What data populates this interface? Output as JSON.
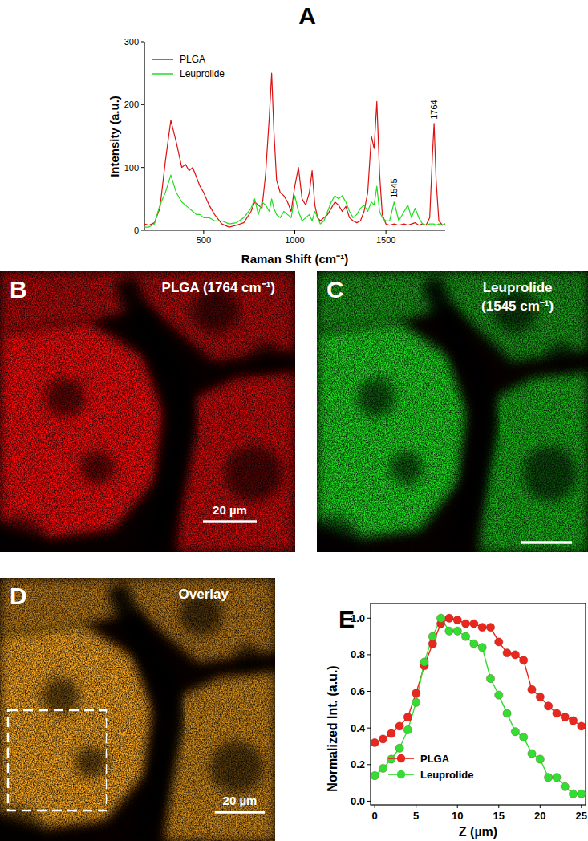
{
  "chart_data": [
    {
      "type": "line",
      "title": "A",
      "x_label": "Raman Shift (cm⁻¹)",
      "y_label": "Intensity (a.u.)",
      "x": [
        175,
        200,
        230,
        260,
        290,
        320,
        350,
        380,
        400,
        420,
        440,
        460,
        480,
        500,
        530,
        560,
        600,
        640,
        680,
        720,
        760,
        780,
        800,
        820,
        840,
        860,
        873,
        885,
        900,
        920,
        940,
        960,
        980,
        1000,
        1020,
        1040,
        1060,
        1080,
        1095,
        1110,
        1125,
        1140,
        1160,
        1180,
        1200,
        1220,
        1240,
        1260,
        1280,
        1300,
        1320,
        1340,
        1360,
        1380,
        1400,
        1420,
        1435,
        1450,
        1465,
        1480,
        1500,
        1520,
        1545,
        1570,
        1600,
        1620,
        1640,
        1660,
        1680,
        1700,
        1720,
        1740,
        1755,
        1764,
        1775,
        1790,
        1810,
        1825
      ],
      "series": [
        {
          "name": "PLGA",
          "color": "#dd1111",
          "values": [
            10,
            8,
            12,
            35,
            110,
            175,
            140,
            100,
            105,
            95,
            100,
            85,
            70,
            60,
            40,
            25,
            10,
            5,
            8,
            12,
            30,
            45,
            40,
            35,
            90,
            180,
            250,
            160,
            80,
            60,
            55,
            45,
            30,
            70,
            100,
            50,
            40,
            60,
            95,
            40,
            20,
            15,
            20,
            25,
            35,
            45,
            40,
            30,
            38,
            20,
            15,
            12,
            15,
            30,
            60,
            150,
            130,
            205,
            90,
            25,
            10,
            8,
            10,
            8,
            10,
            8,
            10,
            12,
            8,
            10,
            8,
            20,
            120,
            170,
            80,
            15,
            8,
            10
          ]
        },
        {
          "name": "Leuprolide",
          "color": "#22dd22",
          "values": [
            5,
            5,
            10,
            40,
            60,
            88,
            60,
            45,
            40,
            35,
            30,
            25,
            25,
            20,
            20,
            15,
            15,
            10,
            12,
            20,
            35,
            50,
            25,
            45,
            40,
            30,
            50,
            35,
            25,
            20,
            30,
            25,
            20,
            55,
            30,
            15,
            20,
            25,
            15,
            30,
            20,
            10,
            15,
            30,
            45,
            55,
            50,
            55,
            45,
            30,
            20,
            25,
            35,
            40,
            30,
            45,
            40,
            70,
            30,
            20,
            15,
            15,
            45,
            15,
            30,
            40,
            20,
            35,
            20,
            10,
            8,
            10,
            10,
            10,
            8,
            10,
            8,
            10
          ]
        }
      ],
      "xlim": [
        175,
        1825
      ],
      "xticks": [
        500,
        1000,
        1500
      ],
      "ylim": [
        0,
        300
      ],
      "yticks": [
        0,
        100,
        200,
        300
      ],
      "legend": "upper left",
      "grid": false,
      "annotations": [
        {
          "text": "1545",
          "x": 1545
        },
        {
          "text": "1764",
          "x": 1764
        }
      ]
    },
    {
      "type": "line",
      "title": "E",
      "x_label": "Z (µm)",
      "y_label": "Normalized Int. (a.u.)",
      "x": [
        0,
        1,
        2,
        3,
        4,
        5,
        6,
        7,
        8,
        9,
        10,
        11,
        12,
        13,
        14,
        15,
        16,
        17,
        18,
        19,
        20,
        21,
        22,
        23,
        24,
        25
      ],
      "series": [
        {
          "name": "PLGA",
          "color": "#e8281e",
          "marker": "circle",
          "values": [
            0.32,
            0.34,
            0.37,
            0.41,
            0.46,
            0.59,
            0.74,
            0.86,
            0.97,
            1.0,
            0.99,
            0.97,
            0.97,
            0.95,
            0.95,
            0.87,
            0.81,
            0.8,
            0.77,
            0.61,
            0.57,
            0.52,
            0.48,
            0.46,
            0.44,
            0.41
          ]
        },
        {
          "name": "Leuprolide",
          "color": "#33dd33",
          "marker": "circle",
          "values": [
            0.14,
            0.18,
            0.23,
            0.29,
            0.39,
            0.54,
            0.76,
            0.9,
            1.0,
            0.93,
            0.93,
            0.9,
            0.86,
            0.84,
            0.67,
            0.58,
            0.48,
            0.38,
            0.35,
            0.26,
            0.23,
            0.13,
            0.13,
            0.08,
            0.04,
            0.04
          ]
        }
      ],
      "xlim": [
        -0.5,
        25.5
      ],
      "xticks": [
        0,
        5,
        10,
        15,
        20,
        25
      ],
      "ylim": [
        -0.02,
        1.08
      ],
      "yticks": [
        {
          "value": 0,
          "label": "0.0"
        },
        0.2,
        0.4,
        0.6,
        0.8,
        {
          "value": 1,
          "label": "1.0"
        }
      ],
      "legend": "lower left",
      "grid": false
    }
  ],
  "images": [
    {
      "title": "B",
      "label": "PLGA (1764 cm⁻¹)",
      "scale_bar": "20 µm",
      "color": "#ff1010"
    },
    {
      "title": "C",
      "label": [
        "Leuprolide",
        "(1545 cm⁻¹)"
      ],
      "color": "#20e020"
    },
    {
      "title": "D",
      "label": "Overlay",
      "scale_bar": "20 µm",
      "colors": [
        "#ff1010",
        "#20e020"
      ]
    }
  ]
}
